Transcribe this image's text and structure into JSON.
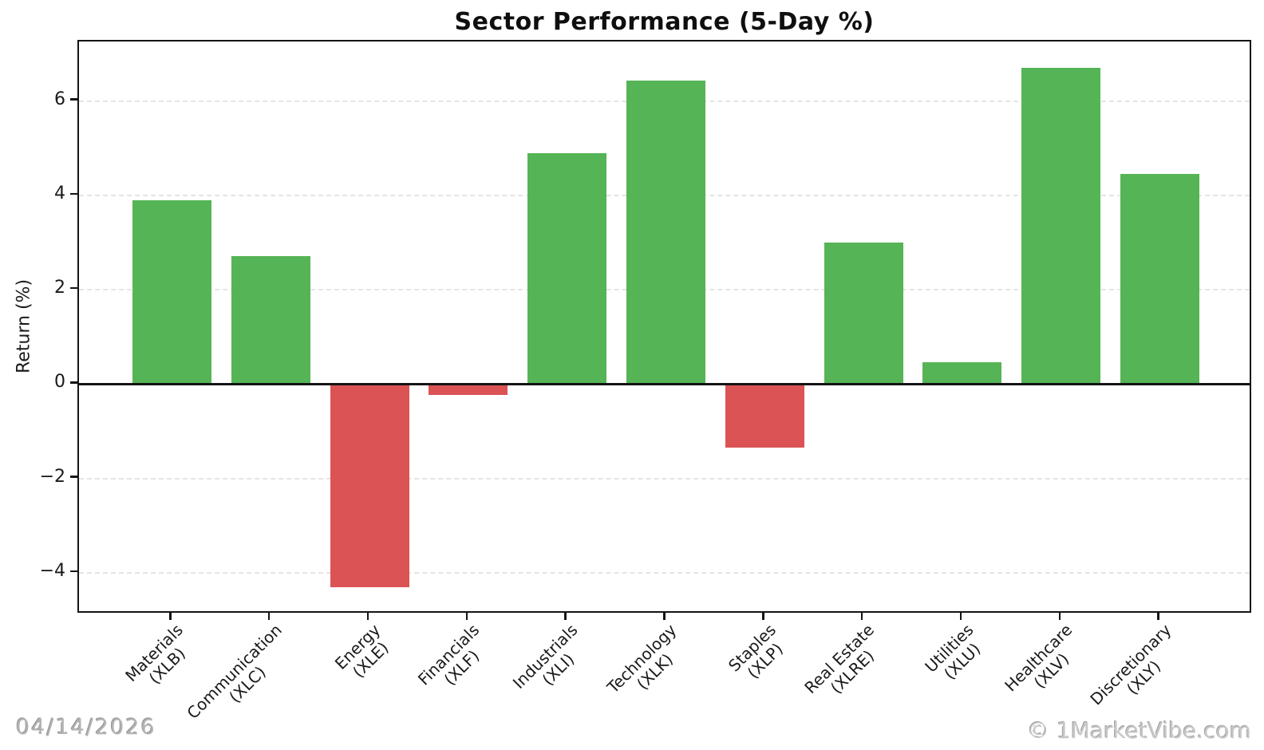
{
  "chart_data": {
    "type": "bar",
    "title": "Sector Performance (5-Day %)",
    "xlabel": "",
    "ylabel": "Return (%)",
    "categories": [
      "Materials (XLB)",
      "Communication (XLC)",
      "Energy (XLE)",
      "Financials (XLF)",
      "Industrials (XLI)",
      "Technology (XLK)",
      "Staples (XLP)",
      "Real Estate (XLRE)",
      "Utilities (XLU)",
      "Healthcare (XLV)",
      "Discretionary (XLY)"
    ],
    "category_lines": [
      [
        "Materials",
        "(XLB)"
      ],
      [
        "Communication",
        "(XLC)"
      ],
      [
        "Energy",
        "(XLE)"
      ],
      [
        "Financials",
        "(XLF)"
      ],
      [
        "Industrials",
        "(XLI)"
      ],
      [
        "Technology",
        "(XLK)"
      ],
      [
        "Staples",
        "(XLP)"
      ],
      [
        "Real Estate",
        "(XLRE)"
      ],
      [
        "Utilities",
        "(XLU)"
      ],
      [
        "Healthcare",
        "(XLV)"
      ],
      [
        "Discretionary",
        "(XLY)"
      ]
    ],
    "values": [
      3.9,
      2.72,
      -4.3,
      -0.23,
      4.9,
      6.43,
      -1.35,
      3.0,
      0.46,
      6.7,
      4.45
    ],
    "yticks": [
      6,
      4,
      2,
      0,
      -2,
      -4
    ],
    "ylim": [
      -4.88,
      7.26
    ],
    "grid": "horizontal-dashed",
    "legend": false,
    "bar_width_fraction": 0.8,
    "colors": {
      "positive": "#55b455",
      "negative": "#db5354",
      "grid": "#e4e4e4",
      "axis": "#141414"
    }
  },
  "footer": {
    "date": "04/14/2026",
    "watermark": "© 1MarketVibe.com"
  }
}
